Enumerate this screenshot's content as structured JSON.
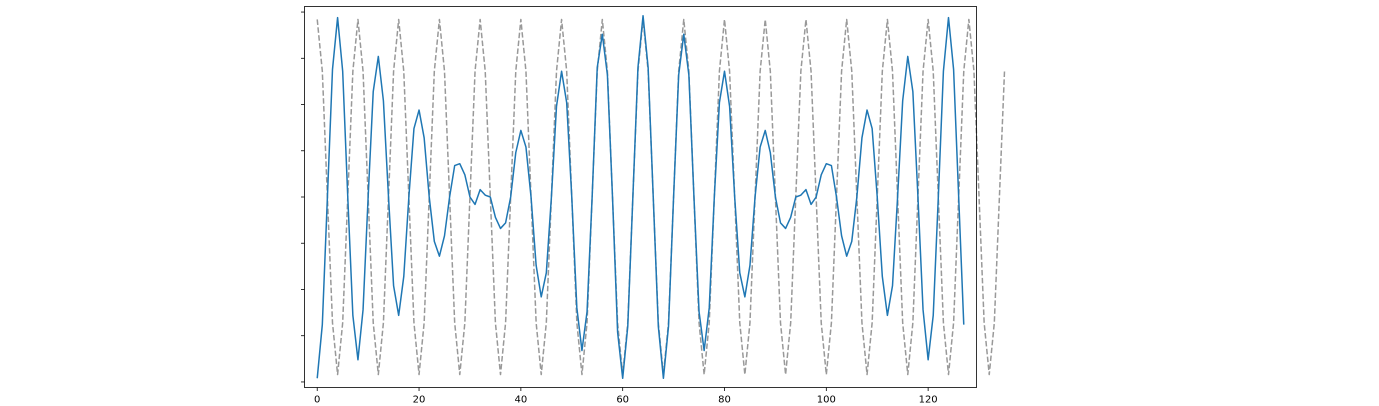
{
  "chart_data": {
    "type": "line",
    "title": "",
    "xlabel": "",
    "ylabel": "",
    "xlim": [
      -2.5,
      129.5
    ],
    "ylim": [
      -1.03,
      1.03
    ],
    "xticks": [
      0,
      20,
      40,
      60,
      80,
      100,
      120
    ],
    "xtick_labels": [
      "0",
      "20",
      "40",
      "60",
      "80",
      "100",
      "120"
    ],
    "yticks": [
      -1.0,
      -0.75,
      -0.5,
      -0.25,
      0.0,
      0.25,
      0.5,
      0.75,
      1.0
    ],
    "ytick_labels_shown": false,
    "grid": false,
    "legend": "none",
    "series": [
      {
        "style": "solid",
        "color": "#1f77b4",
        "n_points": 128,
        "x_start": 0,
        "x_step": 1,
        "description": "cosine with period 8 modulated by slow cosine envelope",
        "values": [
          -0.98,
          -0.69,
          0.0,
          0.69,
          0.97,
          0.68,
          0.0,
          -0.64,
          -0.88,
          -0.61,
          0.0,
          0.57,
          0.76,
          0.52,
          0.0,
          -0.48,
          -0.64,
          -0.43,
          0.0,
          0.37,
          0.47,
          0.32,
          0.0,
          -0.24,
          -0.32,
          -0.21,
          0.0,
          0.17,
          0.18,
          0.12,
          0.0,
          -0.04,
          0.04,
          0.01,
          0.0,
          -0.11,
          -0.17,
          -0.14,
          0.0,
          0.24,
          0.36,
          0.27,
          0.0,
          -0.37,
          -0.54,
          -0.41,
          0.0,
          0.49,
          0.68,
          0.51,
          0.0,
          -0.6,
          -0.83,
          -0.62,
          0.0,
          0.7,
          0.88,
          0.66,
          0.0,
          -0.73,
          -0.98,
          -0.7,
          0.0,
          0.7,
          0.98,
          0.7,
          0.0,
          -0.7,
          -0.98,
          -0.7,
          0.0,
          0.66,
          0.88,
          0.66,
          0.0,
          -0.62,
          -0.83,
          -0.6,
          0.0,
          0.51,
          0.68,
          0.49,
          0.0,
          -0.41,
          -0.54,
          -0.37,
          0.0,
          0.27,
          0.36,
          0.24,
          0.0,
          -0.14,
          -0.17,
          -0.11,
          0.0,
          0.01,
          0.04,
          -0.04,
          0.0,
          0.12,
          0.18,
          0.17,
          0.0,
          -0.21,
          -0.32,
          -0.24,
          0.0,
          0.32,
          0.47,
          0.37,
          0.0,
          -0.43,
          -0.64,
          -0.48,
          0.0,
          0.52,
          0.76,
          0.57,
          0.0,
          -0.61,
          -0.88,
          -0.64,
          0.0,
          0.68,
          0.97,
          0.69,
          0.0,
          -0.69
        ]
      },
      {
        "style": "dashed",
        "color": "#999999",
        "n_points": 128,
        "x_start": 0,
        "x_step": 1,
        "description": "cosine carrier with period 8",
        "values": [
          0.96,
          0.68,
          0.0,
          -0.68,
          -0.96,
          -0.68,
          0.0,
          0.68,
          0.96,
          0.68,
          0.0,
          -0.68,
          -0.96,
          -0.68,
          0.0,
          0.68,
          0.96,
          0.68,
          0.0,
          -0.68,
          -0.96,
          -0.68,
          0.0,
          0.68,
          0.96,
          0.68,
          0.0,
          -0.68,
          -0.96,
          -0.68,
          0.0,
          0.68,
          0.96,
          0.68,
          0.0,
          -0.68,
          -0.96,
          -0.68,
          0.0,
          0.68,
          0.96,
          0.68,
          0.0,
          -0.68,
          -0.96,
          -0.68,
          0.0,
          0.68,
          0.96,
          0.68,
          0.0,
          -0.68,
          -0.96,
          -0.68,
          0.0,
          0.68,
          0.96,
          0.68,
          0.0,
          -0.68,
          -0.96,
          -0.68,
          0.0,
          0.68,
          0.96,
          0.68,
          0.0,
          -0.68,
          -0.96,
          -0.68,
          0.0,
          0.68,
          0.96,
          0.68,
          0.0,
          -0.68,
          -0.96,
          -0.68,
          0.0,
          0.68,
          0.96,
          0.68,
          0.0,
          -0.68,
          -0.96,
          -0.68,
          0.0,
          0.68,
          0.96,
          0.68,
          0.0,
          -0.68,
          -0.96,
          -0.68,
          0.0,
          0.68,
          0.96,
          0.68,
          0.0,
          -0.68,
          -0.96,
          -0.68,
          0.0,
          0.68,
          0.96,
          0.68,
          0.0,
          -0.68,
          -0.96,
          -0.68,
          0.0,
          0.68,
          0.96,
          0.68,
          0.0,
          -0.68,
          -0.96,
          -0.68,
          0.0,
          0.68,
          0.96,
          0.68,
          0.0,
          -0.68,
          -0.96,
          -0.68,
          0.0,
          0.68,
          0.96,
          0.68,
          0.0,
          -0.68,
          -0.96,
          -0.68,
          0.0,
          0.68
        ]
      }
    ]
  }
}
